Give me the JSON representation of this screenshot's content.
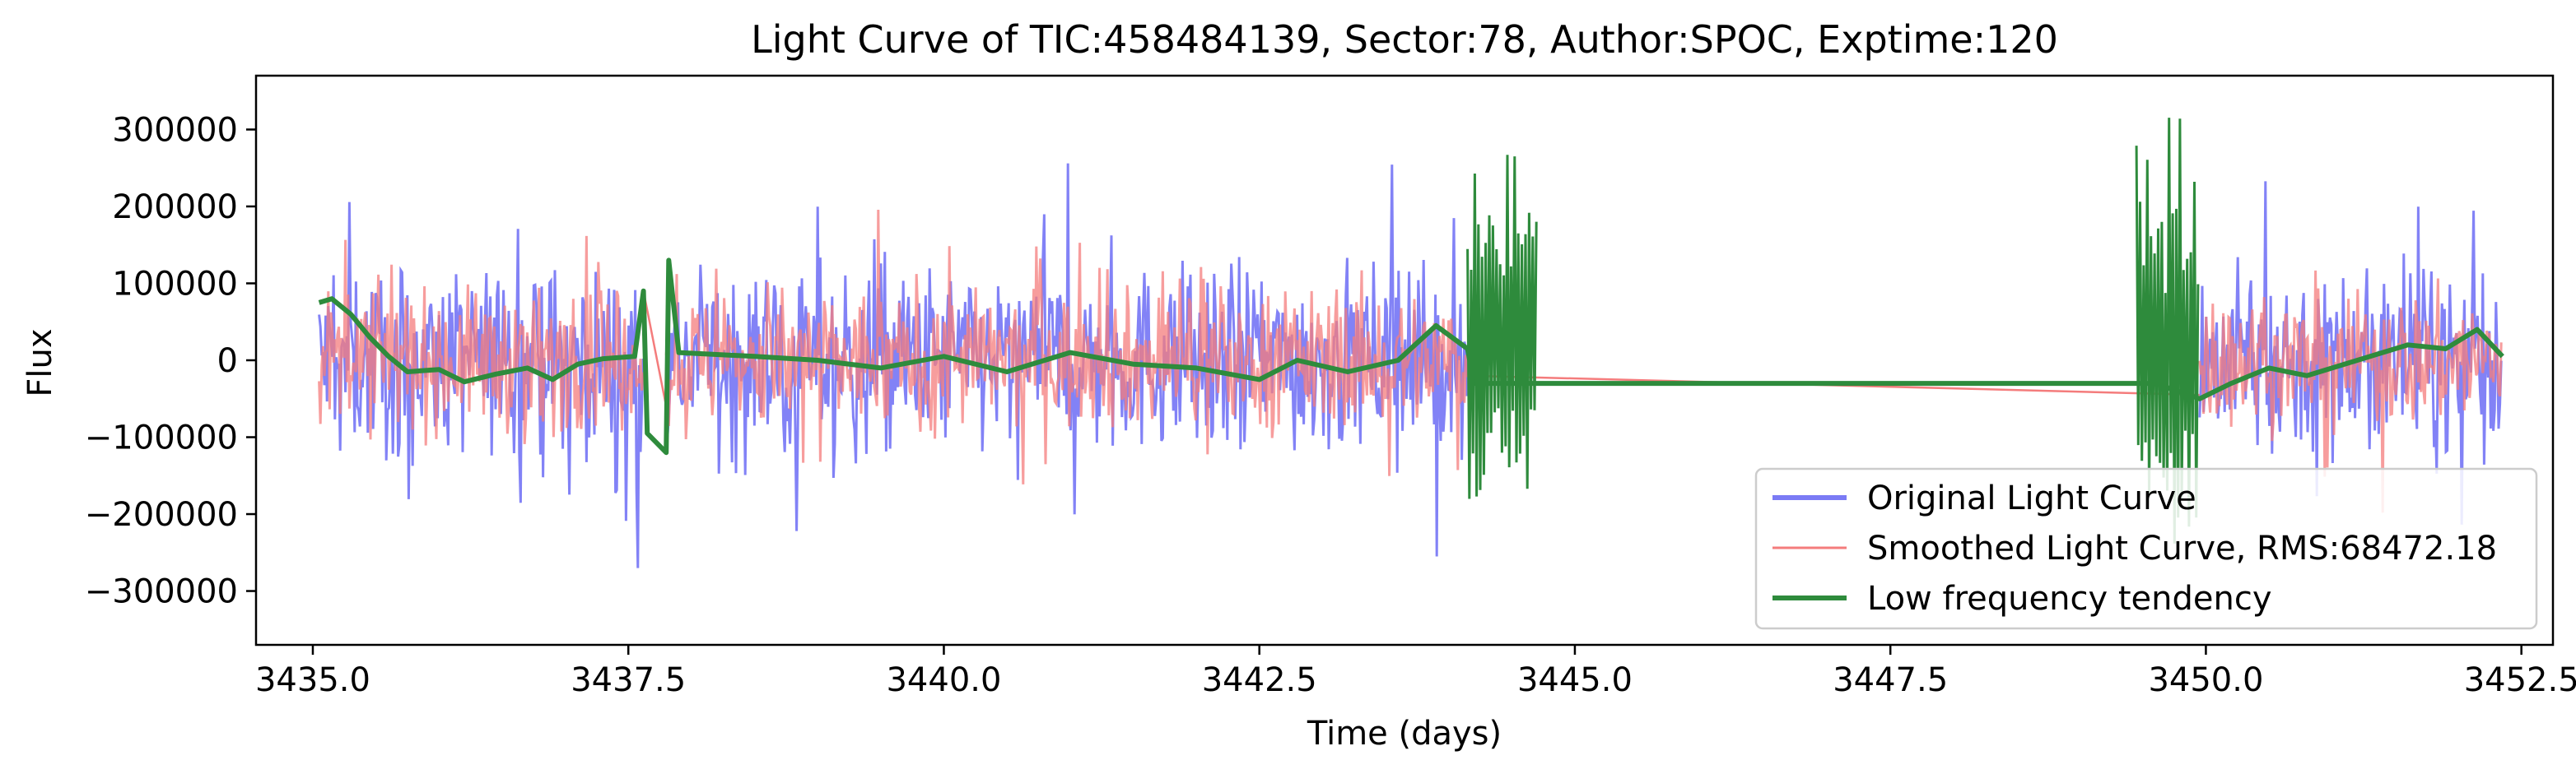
{
  "chart_data": {
    "type": "line",
    "title": "Light Curve of TIC:458484139, Sector:78, Author:SPOC, Exptime:120",
    "xlabel": "Time (days)",
    "ylabel": "Flux",
    "xlim": [
      3434.55,
      3452.75
    ],
    "ylim": [
      -370000,
      370000
    ],
    "xticks": [
      3435.0,
      3437.5,
      3440.0,
      3442.5,
      3445.0,
      3447.5,
      3450.0,
      3452.5
    ],
    "xtick_labels": [
      "3435.0",
      "3437.5",
      "3440.0",
      "3442.5",
      "3445.0",
      "3447.5",
      "3450.0",
      "3452.5"
    ],
    "yticks": [
      -300000,
      -200000,
      -100000,
      0,
      100000,
      200000,
      300000
    ],
    "ytick_labels": [
      "−300000",
      "−200000",
      "−100000",
      "0",
      "100000",
      "200000",
      "300000"
    ],
    "grid": false,
    "legend_position": "lower-right",
    "segments": [
      [
        3435.05,
        3437.62
      ],
      [
        3437.8,
        3444.15
      ],
      [
        3449.95,
        3452.35
      ]
    ],
    "series": [
      {
        "name": "Original Light Curve",
        "color": "#7b7bf5",
        "kind": "noise",
        "center": 0,
        "amplitude": 130000,
        "peak_max": 275000,
        "peak_min": -335000
      },
      {
        "name": "Smoothed Light Curve, RMS:68472.18",
        "color": "#f47c7c",
        "kind": "noise",
        "center": 0,
        "amplitude": 95000,
        "rms": 68472.18
      },
      {
        "name": "Low frequency tendency",
        "color": "#2e8b3c",
        "kind": "trend",
        "points": [
          [
            3435.05,
            75000
          ],
          [
            3435.15,
            80000
          ],
          [
            3435.3,
            60000
          ],
          [
            3435.45,
            30000
          ],
          [
            3435.6,
            5000
          ],
          [
            3435.75,
            -15000
          ],
          [
            3436.0,
            -12000
          ],
          [
            3436.2,
            -28000
          ],
          [
            3436.45,
            -18000
          ],
          [
            3436.7,
            -10000
          ],
          [
            3436.9,
            -25000
          ],
          [
            3437.1,
            -5000
          ],
          [
            3437.3,
            2000
          ],
          [
            3437.55,
            5000
          ],
          [
            3437.62,
            90000
          ],
          [
            3437.65,
            -95000
          ],
          [
            3437.8,
            -120000
          ],
          [
            3437.82,
            130000
          ],
          [
            3437.9,
            10000
          ],
          [
            3438.5,
            5000
          ],
          [
            3439.0,
            0
          ],
          [
            3439.5,
            -10000
          ],
          [
            3440.0,
            5000
          ],
          [
            3440.5,
            -15000
          ],
          [
            3441.0,
            10000
          ],
          [
            3441.5,
            -5000
          ],
          [
            3442.0,
            -10000
          ],
          [
            3442.5,
            -25000
          ],
          [
            3442.8,
            0
          ],
          [
            3443.2,
            -15000
          ],
          [
            3443.6,
            0
          ],
          [
            3443.9,
            45000
          ],
          [
            3444.15,
            15000
          ],
          [
            3444.2,
            -30000
          ],
          [
            3449.5,
            -30000
          ],
          [
            3449.6,
            -30000
          ],
          [
            3449.95,
            -50000
          ],
          [
            3450.2,
            -30000
          ],
          [
            3450.5,
            -10000
          ],
          [
            3450.8,
            -20000
          ],
          [
            3451.2,
            0
          ],
          [
            3451.6,
            20000
          ],
          [
            3451.9,
            15000
          ],
          [
            3452.15,
            40000
          ],
          [
            3452.35,
            5000
          ]
        ],
        "bursts": [
          {
            "x_start": 3444.15,
            "x_end": 3444.7,
            "ymax": 300000,
            "ymin": -210000
          },
          {
            "x_start": 3449.45,
            "x_end": 3449.95,
            "ymax": 340000,
            "ymin": -300000
          }
        ]
      }
    ]
  }
}
